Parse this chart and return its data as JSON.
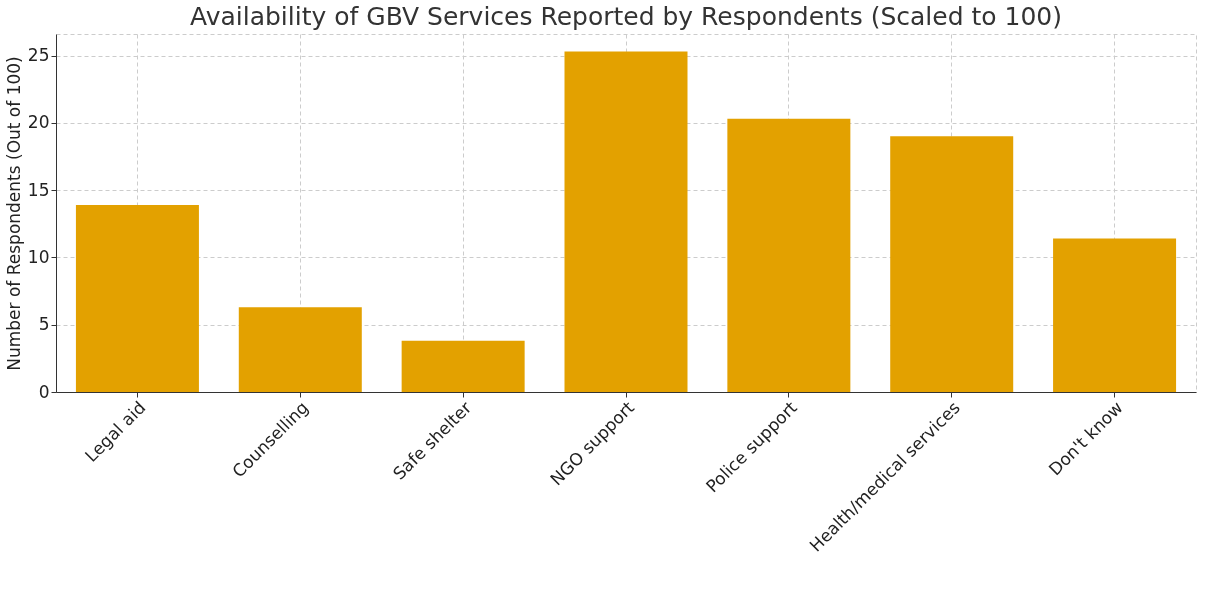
{
  "chart_data": {
    "type": "bar",
    "title": "Availability of GBV Services Reported by Respondents (Scaled to 100)",
    "ylabel": "Number of Respondents (Out of 100)",
    "categories": [
      "Legal aid",
      "Counselling",
      "Safe shelter",
      "NGO support",
      "Police support",
      "Health/medical services",
      "Don't know"
    ],
    "values": [
      13.9,
      6.3,
      3.8,
      25.3,
      20.3,
      19.0,
      11.4
    ],
    "color": "#e3a100",
    "ylim": [
      0,
      26.6
    ],
    "yticks": [
      0,
      5,
      10,
      15,
      20,
      25
    ],
    "grid": true
  }
}
